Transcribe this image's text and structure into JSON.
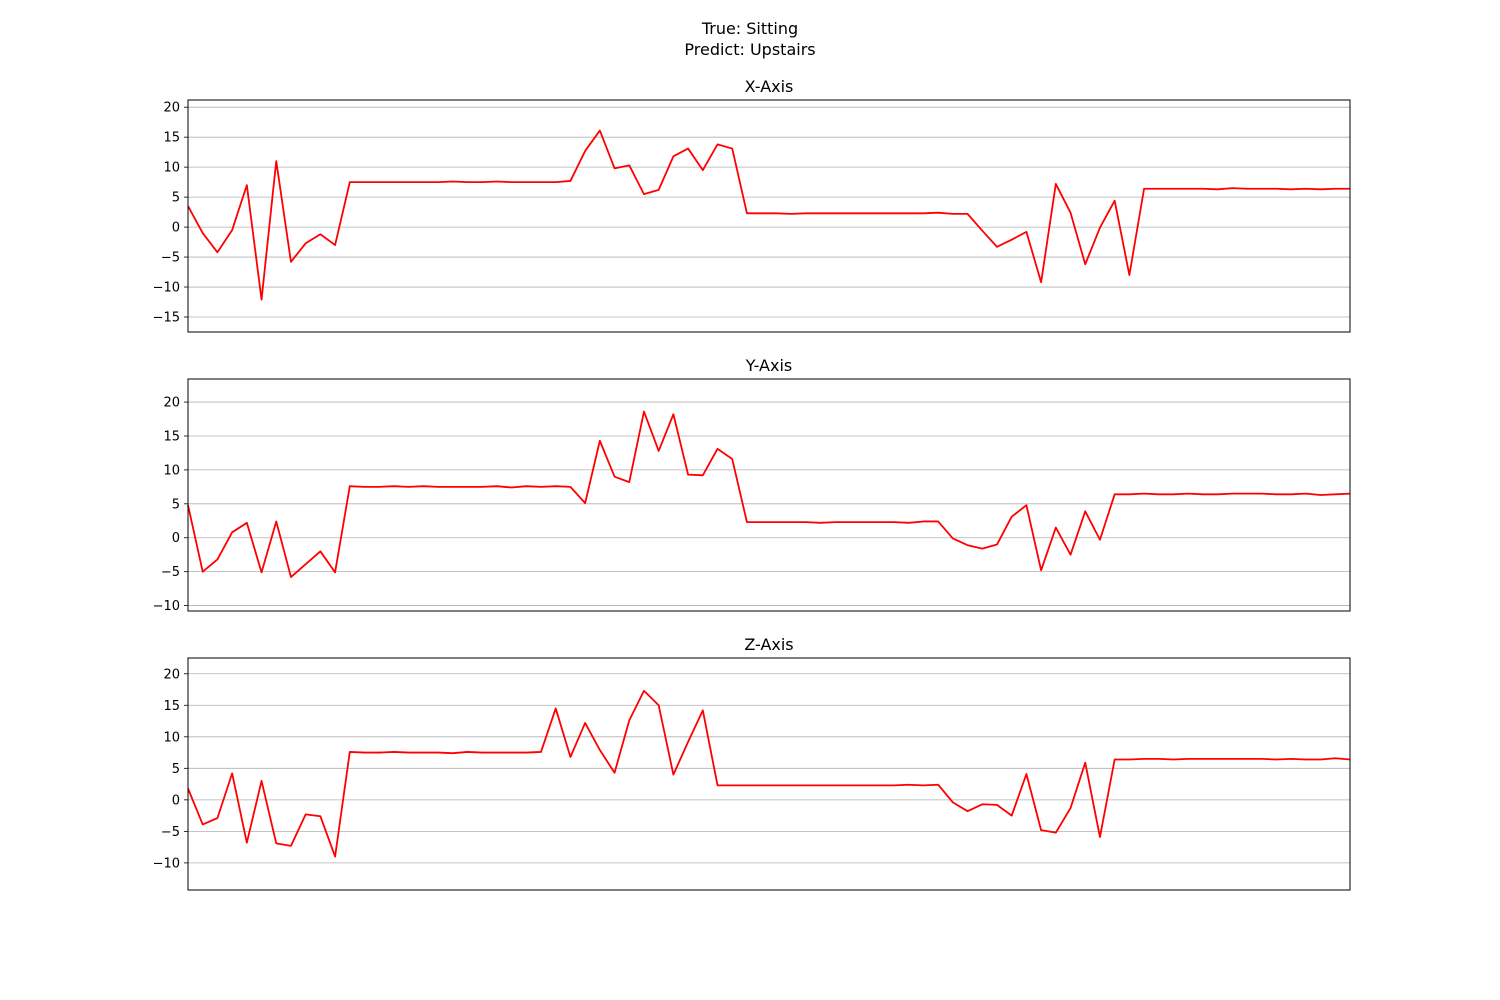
{
  "figure": {
    "suptitle_line1": "True: Sitting",
    "suptitle_line2": "Predict: Upstairs"
  },
  "colors": {
    "series": "#ff0000",
    "grid": "#b0b0b0"
  },
  "chart_data": [
    {
      "type": "line",
      "title": "X-Axis",
      "grid": true,
      "ylim": [
        -17.5,
        21.2
      ],
      "yticks": [
        -15,
        -10,
        -5,
        0,
        5,
        10,
        15,
        20
      ],
      "values": [
        3.5,
        -1.0,
        -4.2,
        -0.5,
        7.0,
        -12.1,
        11.0,
        -5.8,
        -2.7,
        -1.2,
        -3.0,
        7.5,
        7.5,
        7.5,
        7.5,
        7.5,
        7.5,
        7.5,
        7.6,
        7.5,
        7.5,
        7.6,
        7.5,
        7.5,
        7.5,
        7.5,
        7.7,
        12.7,
        16.1,
        9.8,
        10.3,
        5.5,
        6.2,
        11.8,
        13.1,
        9.5,
        13.8,
        13.1,
        2.3,
        2.3,
        2.3,
        2.2,
        2.3,
        2.3,
        2.3,
        2.3,
        2.3,
        2.3,
        2.3,
        2.3,
        2.3,
        2.4,
        2.2,
        2.2,
        -0.6,
        -3.3,
        -2.1,
        -0.8,
        -9.2,
        7.2,
        2.4,
        -6.2,
        -0.1,
        4.4,
        -8.0,
        6.4,
        6.4,
        6.4,
        6.4,
        6.4,
        6.3,
        6.5,
        6.4,
        6.4,
        6.4,
        6.3,
        6.4,
        6.3,
        6.4,
        6.4
      ]
    },
    {
      "type": "line",
      "title": "Y-Axis",
      "grid": true,
      "ylim": [
        -10.8,
        23.4
      ],
      "yticks": [
        -10,
        -5,
        0,
        5,
        10,
        15,
        20
      ],
      "values": [
        4.8,
        -5.0,
        -3.2,
        0.8,
        2.2,
        -5.1,
        2.4,
        -5.8,
        -3.9,
        -2.0,
        -5.1,
        7.6,
        7.5,
        7.5,
        7.6,
        7.5,
        7.6,
        7.5,
        7.5,
        7.5,
        7.5,
        7.6,
        7.4,
        7.6,
        7.5,
        7.6,
        7.5,
        5.1,
        14.3,
        9.0,
        8.2,
        18.6,
        12.8,
        18.2,
        9.3,
        9.2,
        13.1,
        11.6,
        2.3,
        2.3,
        2.3,
        2.3,
        2.3,
        2.2,
        2.3,
        2.3,
        2.3,
        2.3,
        2.3,
        2.2,
        2.4,
        2.4,
        -0.1,
        -1.1,
        -1.6,
        -1.0,
        3.1,
        4.8,
        -4.8,
        1.5,
        -2.5,
        3.9,
        -0.3,
        6.4,
        6.4,
        6.5,
        6.4,
        6.4,
        6.5,
        6.4,
        6.4,
        6.5,
        6.5,
        6.5,
        6.4,
        6.4,
        6.5,
        6.3,
        6.4,
        6.5
      ]
    },
    {
      "type": "line",
      "title": "Z-Axis",
      "grid": true,
      "ylim": [
        -14.3,
        22.5
      ],
      "yticks": [
        -10,
        -5,
        0,
        5,
        10,
        15,
        20
      ],
      "values": [
        1.8,
        -3.9,
        -2.9,
        4.2,
        -6.8,
        3.0,
        -6.9,
        -7.3,
        -2.3,
        -2.6,
        -9.0,
        7.6,
        7.5,
        7.5,
        7.6,
        7.5,
        7.5,
        7.5,
        7.4,
        7.6,
        7.5,
        7.5,
        7.5,
        7.5,
        7.6,
        14.5,
        6.8,
        12.2,
        7.9,
        4.3,
        12.6,
        17.3,
        15.0,
        4.0,
        9.2,
        14.2,
        2.3,
        2.3,
        2.3,
        2.3,
        2.3,
        2.3,
        2.3,
        2.3,
        2.3,
        2.3,
        2.3,
        2.3,
        2.3,
        2.4,
        2.3,
        2.4,
        -0.4,
        -1.8,
        -0.7,
        -0.8,
        -2.5,
        4.1,
        -4.8,
        -5.2,
        -1.3,
        5.9,
        -5.9,
        6.4,
        6.4,
        6.5,
        6.5,
        6.4,
        6.5,
        6.5,
        6.5,
        6.5,
        6.5,
        6.5,
        6.4,
        6.5,
        6.4,
        6.4,
        6.6,
        6.4
      ]
    }
  ]
}
